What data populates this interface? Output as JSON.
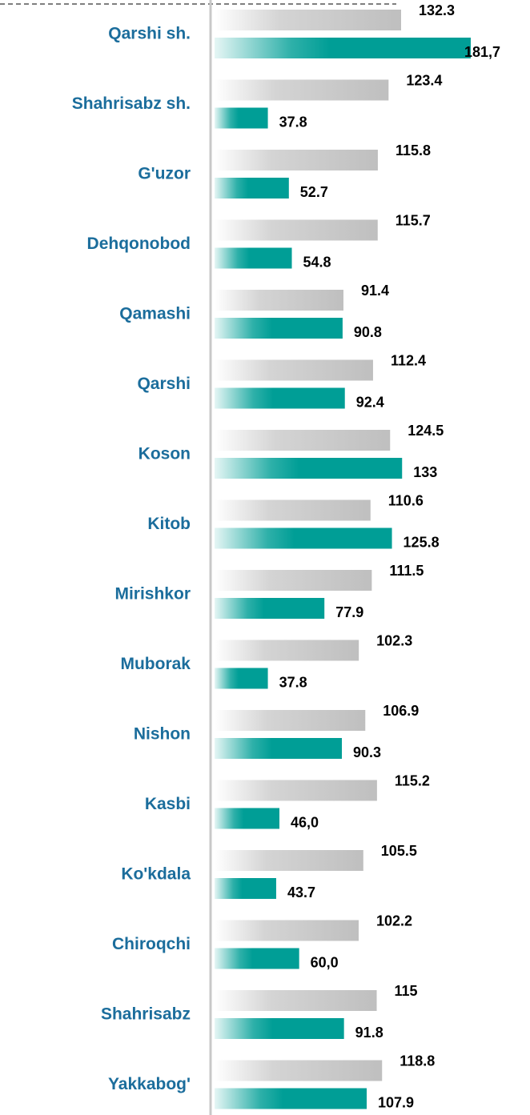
{
  "chart_data": {
    "type": "bar",
    "orientation": "horizontal",
    "categories": [
      "Qarshi sh.",
      "Shahrisabz sh.",
      "G'uzor",
      "Dehqonobod",
      "Qamashi",
      "Qarshi",
      "Koson",
      "Kitob",
      "Mirishkor",
      "Muborak",
      "Nishon",
      "Kasbi",
      "Ko'kdala",
      "Chiroqchi",
      "Shahrisabz",
      "Yakkabog'"
    ],
    "series": [
      {
        "color": "#bfbfbf",
        "values": [
          132.3,
          123.4,
          115.8,
          115.7,
          91.4,
          112.4,
          124.5,
          110.6,
          111.5,
          102.3,
          106.9,
          115.2,
          105.5,
          102.2,
          115,
          118.8
        ]
      },
      {
        "color": "#009e96",
        "values": [
          181.7,
          37.8,
          52.7,
          54.8,
          90.8,
          92.4,
          133,
          125.8,
          77.9,
          37.8,
          90.3,
          46,
          43.7,
          60,
          91.8,
          107.9
        ],
        "value_labels": [
          "181,7",
          "37.8",
          "52.7",
          "54.8",
          "90.8",
          "92.4",
          "133",
          "125.8",
          "77.9",
          "37.8",
          "90.3",
          "46,0",
          "43.7",
          "60,0",
          "91.8",
          "107.9"
        ]
      }
    ]
  }
}
